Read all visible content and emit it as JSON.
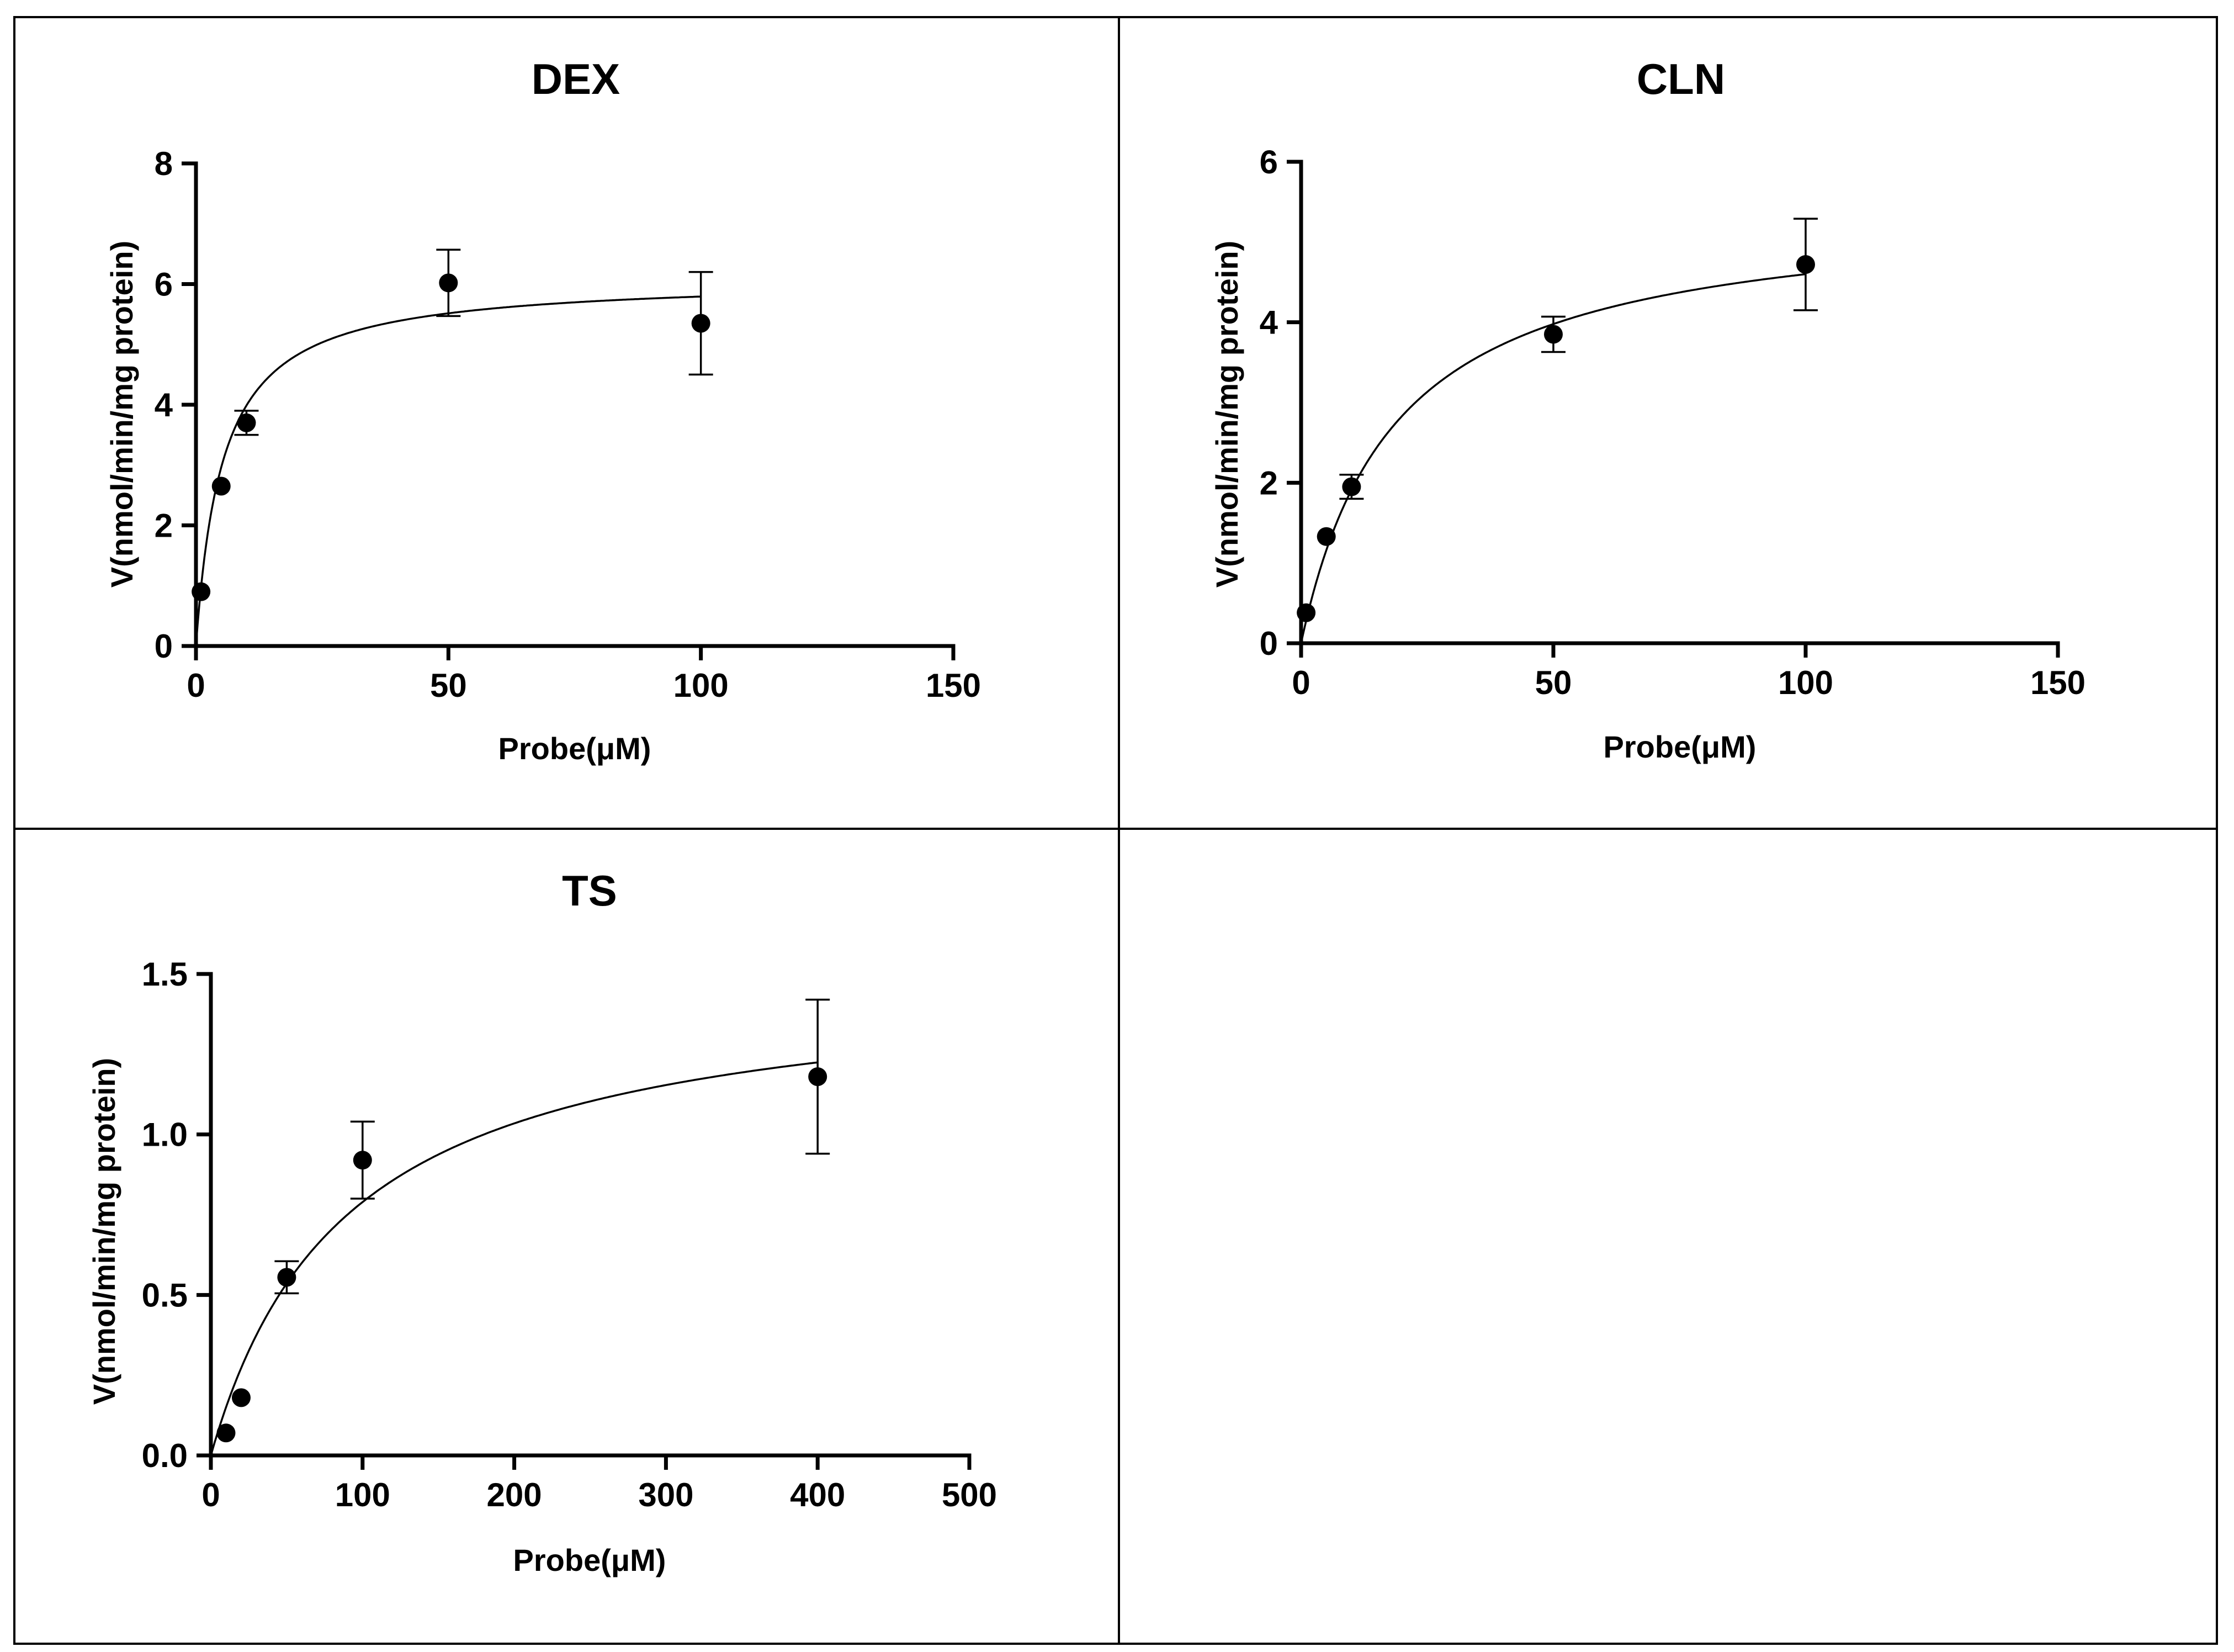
{
  "chart_data": [
    {
      "type": "scatter",
      "title": "DEX",
      "xlabel": "Probe(μM)",
      "ylabel": "V(nmol/min/mg protein)",
      "xlim": [
        0,
        150
      ],
      "ylim": [
        0,
        8
      ],
      "xticks": [
        0,
        50,
        100,
        150
      ],
      "yticks": [
        0,
        2,
        4,
        6,
        8
      ],
      "x": [
        1,
        5,
        10,
        50,
        100
      ],
      "y": [
        0.9,
        2.65,
        3.7,
        6.02,
        5.35
      ],
      "error": [
        0,
        0,
        0.2,
        0.55,
        0.85
      ],
      "fit": {
        "model": "Michaelis-Menten",
        "vmax": 6.1,
        "km": 5.3,
        "xmax": 100
      }
    },
    {
      "type": "scatter",
      "title": "CLN",
      "xlabel": "Probe(μM)",
      "ylabel": "V(nmol/min/mg protein)",
      "xlim": [
        0,
        150
      ],
      "ylim": [
        0,
        6
      ],
      "xticks": [
        0,
        50,
        100,
        150
      ],
      "yticks": [
        0,
        2,
        4,
        6
      ],
      "x": [
        1,
        5,
        10,
        50,
        100
      ],
      "y": [
        0.38,
        1.33,
        1.95,
        3.85,
        4.72
      ],
      "error": [
        0,
        0,
        0.15,
        0.22,
        0.57
      ],
      "fit": {
        "model": "Michaelis-Menten",
        "vmax": 5.45,
        "km": 18.5,
        "xmax": 100
      }
    },
    {
      "type": "scatter",
      "title": "TS",
      "xlabel": "Probe(μM)",
      "ylabel": "V(nmol/min/mg protein)",
      "xlim": [
        0,
        500
      ],
      "ylim": [
        0,
        1.5
      ],
      "xticks": [
        0,
        100,
        200,
        300,
        400,
        500
      ],
      "yticks": [
        "0.0",
        "0.5",
        "1.0",
        "1.5"
      ],
      "x": [
        10,
        20,
        50,
        100,
        400
      ],
      "y": [
        0.07,
        0.18,
        0.555,
        0.92,
        1.18
      ],
      "error": [
        0,
        0,
        0.05,
        0.12,
        0.24
      ],
      "fit": {
        "model": "Michaelis-Menten",
        "vmax": 1.5,
        "km": 90,
        "xmax": 400
      }
    }
  ]
}
